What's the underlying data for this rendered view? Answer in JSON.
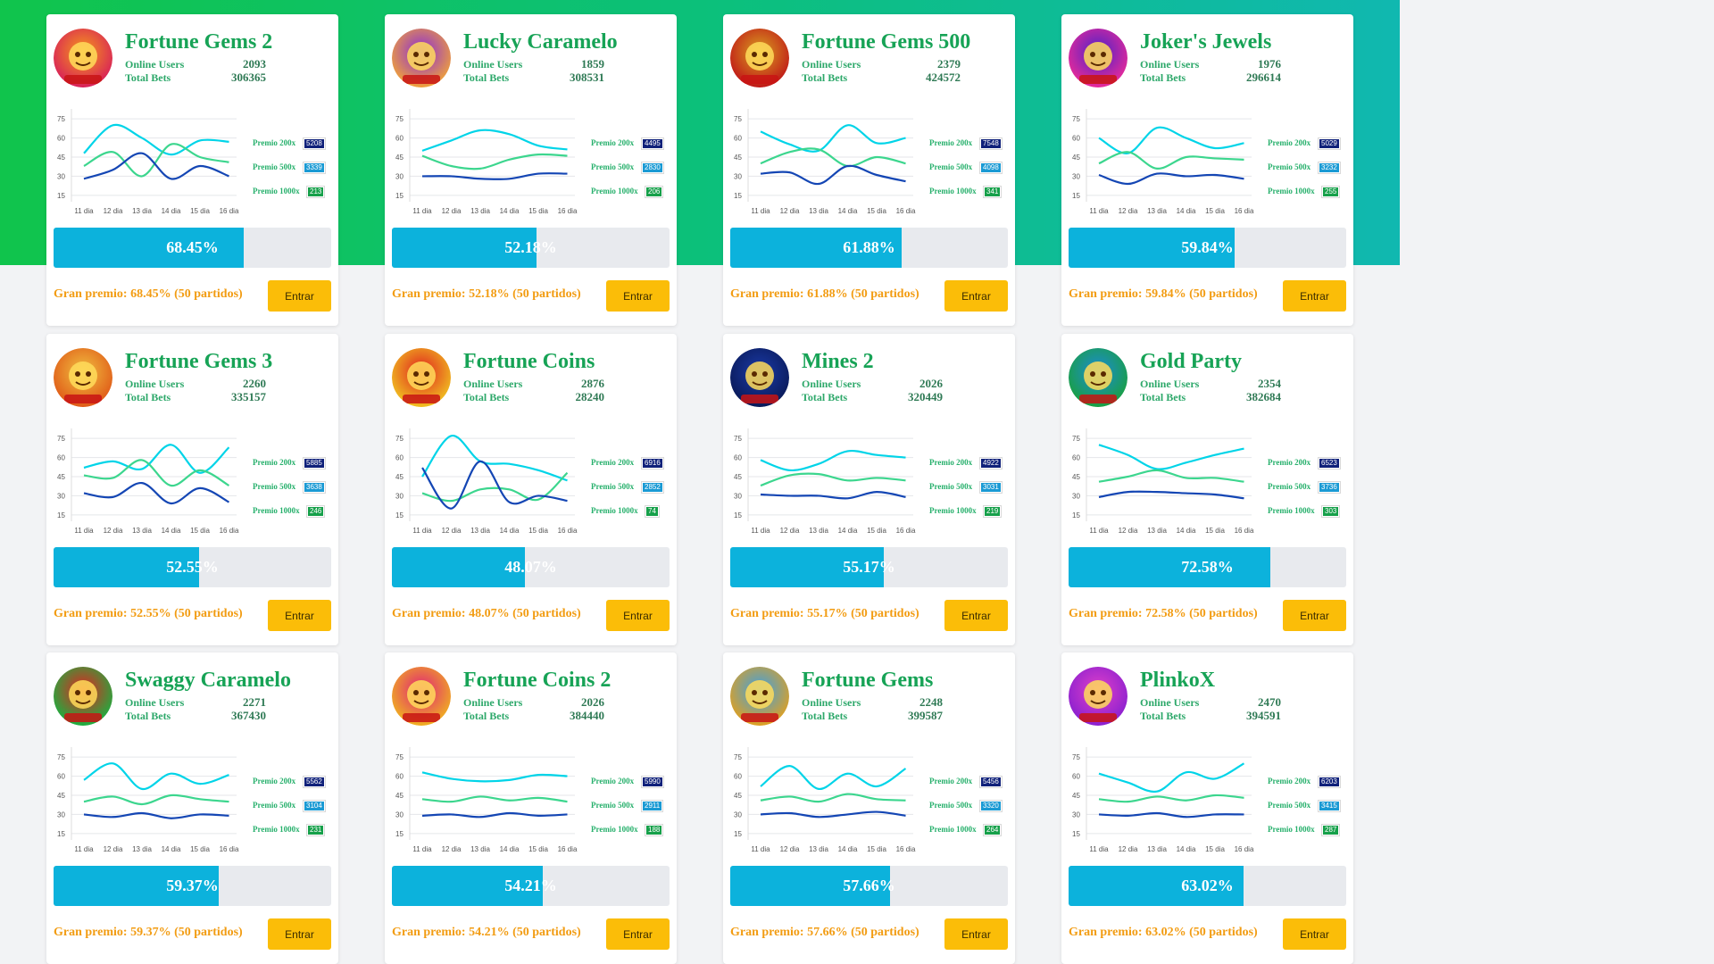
{
  "chart_axis": {
    "y_ticks": [
      "75",
      "60",
      "45",
      "30",
      "15"
    ],
    "ylim": [
      10,
      80
    ]
  },
  "colors": {
    "premio200": "#00d4e8",
    "premio500": "#3cd68e",
    "premio1000": "#1446b4",
    "badge200": "#10217a",
    "badge500": "#1a9ad4",
    "badge1000": "#16a04a"
  },
  "premio_labels": [
    "Premio 200x",
    "Premio 500x",
    "Premio 1000x"
  ],
  "button_label": "Entrar",
  "games": [
    {
      "title": "Fortune Gems 2",
      "online_label": "Online Users",
      "online": "2093",
      "bets_label": "Total Bets",
      "bets": "306365",
      "percent_text": "68.45%",
      "percent": 68.45,
      "gran": "Gran premio: 68.45% (50 partidos)",
      "badges": [
        "5208",
        "3339",
        "213"
      ],
      "avatar_colors": [
        "#f59a1a",
        "#d8205a"
      ],
      "avatar_icon": "golden-idol-icon",
      "chart_data": {
        "type": "line",
        "x": [
          "11 dia",
          "12 dia",
          "13 dia",
          "14 dia",
          "15 dia",
          "16 dia"
        ],
        "ylim": [
          10,
          80
        ],
        "series": [
          {
            "name": "Premio 200x",
            "values": [
              48,
              70,
              60,
              47,
              58,
              57
            ]
          },
          {
            "name": "Premio 500x",
            "values": [
              38,
              49,
              30,
              55,
              45,
              41
            ]
          },
          {
            "name": "Premio 1000x",
            "values": [
              28,
              35,
              48,
              28,
              38,
              30
            ]
          }
        ]
      }
    },
    {
      "title": "Lucky Caramelo",
      "online_label": "Online Users",
      "online": "1859",
      "bets_label": "Total Bets",
      "bets": "308531",
      "percent_text": "52.18%",
      "percent": 52.18,
      "gran": "Gran premio: 52.18% (50 partidos)",
      "badges": [
        "4495",
        "2830",
        "206"
      ],
      "avatar_colors": [
        "#8a2bd8",
        "#f0a23a"
      ],
      "avatar_icon": "caramel-dog-icon",
      "chart_data": {
        "type": "line",
        "x": [
          "11 dia",
          "12 dia",
          "13 dia",
          "14 dia",
          "15 dia",
          "16 dia"
        ],
        "ylim": [
          10,
          80
        ],
        "series": [
          {
            "name": "Premio 200x",
            "values": [
              50,
              58,
              66,
              63,
              54,
              51
            ]
          },
          {
            "name": "Premio 500x",
            "values": [
              46,
              38,
              36,
              43,
              47,
              46
            ]
          },
          {
            "name": "Premio 1000x",
            "values": [
              30,
              30,
              28,
              28,
              32,
              32
            ]
          }
        ]
      }
    },
    {
      "title": "Fortune Gems 500",
      "online_label": "Online Users",
      "online": "2379",
      "bets_label": "Total Bets",
      "bets": "424572",
      "percent_text": "61.88%",
      "percent": 61.88,
      "gran": "Gran premio: 61.88% (50 partidos)",
      "badges": [
        "7548",
        "4098",
        "341"
      ],
      "avatar_colors": [
        "#d8a020",
        "#c01818"
      ],
      "avatar_icon": "golden-idol-icon",
      "chart_data": {
        "type": "line",
        "x": [
          "11 dia",
          "12 dia",
          "13 dia",
          "14 dia",
          "15 dia",
          "16 dia"
        ],
        "ylim": [
          10,
          80
        ],
        "series": [
          {
            "name": "Premio 200x",
            "values": [
              65,
              55,
              50,
              70,
              56,
              60
            ]
          },
          {
            "name": "Premio 500x",
            "values": [
              40,
              49,
              51,
              38,
              45,
              40
            ]
          },
          {
            "name": "Premio 1000x",
            "values": [
              32,
              33,
              24,
              38,
              31,
              26
            ]
          }
        ]
      }
    },
    {
      "title": "Joker's Jewels",
      "online_label": "Online Users",
      "online": "1976",
      "bets_label": "Total Bets",
      "bets": "296614",
      "percent_text": "59.84%",
      "percent": 59.84,
      "gran": "Gran premio: 59.84% (50 partidos)",
      "badges": [
        "5029",
        "3232",
        "255"
      ],
      "avatar_colors": [
        "#4a22c8",
        "#e82a9a"
      ],
      "avatar_icon": "joker-icon",
      "chart_data": {
        "type": "line",
        "x": [
          "11 dia",
          "12 dia",
          "13 dia",
          "14 dia",
          "15 dia",
          "16 dia"
        ],
        "ylim": [
          10,
          80
        ],
        "series": [
          {
            "name": "Premio 200x",
            "values": [
              60,
              48,
              68,
              60,
              52,
              56
            ]
          },
          {
            "name": "Premio 500x",
            "values": [
              40,
              49,
              36,
              45,
              44,
              43
            ]
          },
          {
            "name": "Premio 1000x",
            "values": [
              31,
              24,
              32,
              30,
              31,
              28
            ]
          }
        ]
      }
    },
    {
      "title": "Fortune Gems 3",
      "online_label": "Online Users",
      "online": "2260",
      "bets_label": "Total Bets",
      "bets": "335157",
      "percent_text": "52.55%",
      "percent": 52.55,
      "gran": "Gran premio: 52.55% (50 partidos)",
      "badges": [
        "5885",
        "3638",
        "246"
      ],
      "avatar_colors": [
        "#f0c040",
        "#e05a18"
      ],
      "avatar_icon": "golden-idol-icon",
      "chart_data": {
        "type": "line",
        "x": [
          "11 dia",
          "12 dia",
          "13 dia",
          "14 dia",
          "15 dia",
          "16 dia"
        ],
        "ylim": [
          10,
          80
        ],
        "series": [
          {
            "name": "Premio 200x",
            "values": [
              52,
              57,
              51,
              70,
              48,
              68
            ]
          },
          {
            "name": "Premio 500x",
            "values": [
              46,
              44,
              58,
              38,
              50,
              38
            ]
          },
          {
            "name": "Premio 1000x",
            "values": [
              32,
              29,
              40,
              24,
              36,
              25
            ]
          }
        ]
      }
    },
    {
      "title": "Fortune Coins",
      "online_label": "Online Users",
      "online": "2876",
      "bets_label": "Total Bets",
      "bets": "28240",
      "percent_text": "48.07%",
      "percent": 48.07,
      "gran": "Gran premio: 48.07% (50 partidos)",
      "badges": [
        "6916",
        "2852",
        "74"
      ],
      "avatar_colors": [
        "#e02020",
        "#f0c020"
      ],
      "avatar_icon": "coin-icon",
      "chart_data": {
        "type": "line",
        "x": [
          "11 dia",
          "12 dia",
          "13 dia",
          "14 dia",
          "15 dia",
          "16 dia"
        ],
        "ylim": [
          10,
          80
        ],
        "series": [
          {
            "name": "Premio 200x",
            "values": [
              45,
              77,
              57,
              55,
              50,
              42
            ]
          },
          {
            "name": "Premio 500x",
            "values": [
              32,
              26,
              35,
              35,
              27,
              48
            ]
          },
          {
            "name": "Premio 1000x",
            "values": [
              52,
              20,
              57,
              25,
              30,
              26
            ]
          }
        ]
      }
    },
    {
      "title": "Mines 2",
      "online_label": "Online Users",
      "online": "2026",
      "bets_label": "Total Bets",
      "bets": "320449",
      "percent_text": "55.17%",
      "percent": 55.17,
      "gran": "Gran premio: 55.17% (50 partidos)",
      "badges": [
        "4922",
        "3031",
        "219"
      ],
      "avatar_colors": [
        "#1a3aa8",
        "#0a1a58"
      ],
      "avatar_icon": "bomb-icon",
      "chart_data": {
        "type": "line",
        "x": [
          "11 dia",
          "12 dia",
          "13 dia",
          "14 dia",
          "15 dia",
          "16 dia"
        ],
        "ylim": [
          10,
          80
        ],
        "series": [
          {
            "name": "Premio 200x",
            "values": [
              58,
              50,
              55,
              65,
              62,
              60
            ]
          },
          {
            "name": "Premio 500x",
            "values": [
              38,
              46,
              47,
              42,
              44,
              42
            ]
          },
          {
            "name": "Premio 1000x",
            "values": [
              31,
              30,
              30,
              28,
              33,
              29
            ]
          }
        ]
      }
    },
    {
      "title": "Gold Party",
      "online_label": "Online Users",
      "online": "2354",
      "bets_label": "Total Bets",
      "bets": "382684",
      "percent_text": "72.58%",
      "percent": 72.58,
      "gran": "Gran premio: 72.58% (50 partidos)",
      "badges": [
        "6523",
        "3736",
        "303"
      ],
      "avatar_colors": [
        "#1c8ad8",
        "#1aa040"
      ],
      "avatar_icon": "leprechaun-icon",
      "chart_data": {
        "type": "line",
        "x": [
          "11 dia",
          "12 dia",
          "13 dia",
          "14 dia",
          "15 dia",
          "16 dia"
        ],
        "ylim": [
          10,
          80
        ],
        "series": [
          {
            "name": "Premio 200x",
            "values": [
              70,
              62,
              51,
              56,
              62,
              67
            ]
          },
          {
            "name": "Premio 500x",
            "values": [
              41,
              45,
              50,
              44,
              44,
              41
            ]
          },
          {
            "name": "Premio 1000x",
            "values": [
              29,
              33,
              33,
              32,
              31,
              28
            ]
          }
        ]
      }
    },
    {
      "title": "Swaggy Caramelo",
      "online_label": "Online Users",
      "online": "2271",
      "bets_label": "Total Bets",
      "bets": "367430",
      "percent_text": "59.37%",
      "percent": 59.37,
      "gran": "Gran premio: 59.37% (50 partidos)",
      "badges": [
        "5562",
        "3104",
        "231"
      ],
      "avatar_colors": [
        "#e82020",
        "#1ab040"
      ],
      "avatar_icon": "caramel-dog-icon",
      "chart_data": {
        "type": "line",
        "x": [
          "11 dia",
          "12 dia",
          "13 dia",
          "14 dia",
          "15 dia",
          "16 dia"
        ],
        "ylim": [
          10,
          80
        ],
        "series": [
          {
            "name": "Premio 200x",
            "values": [
              57,
              70,
              50,
              62,
              54,
              61
            ]
          },
          {
            "name": "Premio 500x",
            "values": [
              40,
              44,
              38,
              45,
              42,
              40
            ]
          },
          {
            "name": "Premio 1000x",
            "values": [
              30,
              28,
              31,
              27,
              30,
              29
            ]
          }
        ]
      }
    },
    {
      "title": "Fortune Coins 2",
      "online_label": "Online Users",
      "online": "2026",
      "bets_label": "Total Bets",
      "bets": "384440",
      "percent_text": "54.21%",
      "percent": 54.21,
      "gran": "Gran premio: 54.21% (50 partidos)",
      "badges": [
        "5990",
        "2911",
        "188"
      ],
      "avatar_colors": [
        "#e0207a",
        "#f0b020"
      ],
      "avatar_icon": "coin-icon",
      "chart_data": {
        "type": "line",
        "x": [
          "11 dia",
          "12 dia",
          "13 dia",
          "14 dia",
          "15 dia",
          "16 dia"
        ],
        "ylim": [
          10,
          80
        ],
        "series": [
          {
            "name": "Premio 200x",
            "values": [
              63,
              58,
              56,
              57,
              61,
              60
            ]
          },
          {
            "name": "Premio 500x",
            "values": [
              42,
              40,
              44,
              41,
              43,
              40
            ]
          },
          {
            "name": "Premio 1000x",
            "values": [
              29,
              30,
              28,
              31,
              29,
              30
            ]
          }
        ]
      }
    },
    {
      "title": "Fortune Gems",
      "online_label": "Online Users",
      "online": "2248",
      "bets_label": "Total Bets",
      "bets": "399587",
      "percent_text": "57.66%",
      "percent": 57.66,
      "gran": "Gran premio: 57.66% (50 partidos)",
      "badges": [
        "5456",
        "3320",
        "264"
      ],
      "avatar_colors": [
        "#3aa0e8",
        "#e0a020"
      ],
      "avatar_icon": "golden-idol-icon",
      "chart_data": {
        "type": "line",
        "x": [
          "11 dia",
          "12 dia",
          "13 dia",
          "14 dia",
          "15 dia",
          "16 dia"
        ],
        "ylim": [
          10,
          80
        ],
        "series": [
          {
            "name": "Premio 200x",
            "values": [
              52,
              68,
              50,
              62,
              52,
              66
            ]
          },
          {
            "name": "Premio 500x",
            "values": [
              41,
              44,
              40,
              46,
              42,
              41
            ]
          },
          {
            "name": "Premio 1000x",
            "values": [
              30,
              31,
              28,
              30,
              32,
              29
            ]
          }
        ]
      }
    },
    {
      "title": "PlinkoX",
      "online_label": "Online Users",
      "online": "2470",
      "bets_label": "Total Bets",
      "bets": "394591",
      "percent_text": "63.02%",
      "percent": 63.02,
      "gran": "Gran premio: 63.02% (50 partidos)",
      "badges": [
        "6203",
        "3415",
        "287"
      ],
      "avatar_colors": [
        "#e040c8",
        "#8a20d0"
      ],
      "avatar_icon": "plinko-disc-icon",
      "chart_data": {
        "type": "line",
        "x": [
          "11 dia",
          "12 dia",
          "13 dia",
          "14 dia",
          "15 dia",
          "16 dia"
        ],
        "ylim": [
          10,
          80
        ],
        "series": [
          {
            "name": "Premio 200x",
            "values": [
              62,
              55,
              48,
              63,
              58,
              70
            ]
          },
          {
            "name": "Premio 500x",
            "values": [
              42,
              40,
              44,
              41,
              45,
              43
            ]
          },
          {
            "name": "Premio 1000x",
            "values": [
              30,
              29,
              31,
              28,
              30,
              30
            ]
          }
        ]
      }
    }
  ]
}
